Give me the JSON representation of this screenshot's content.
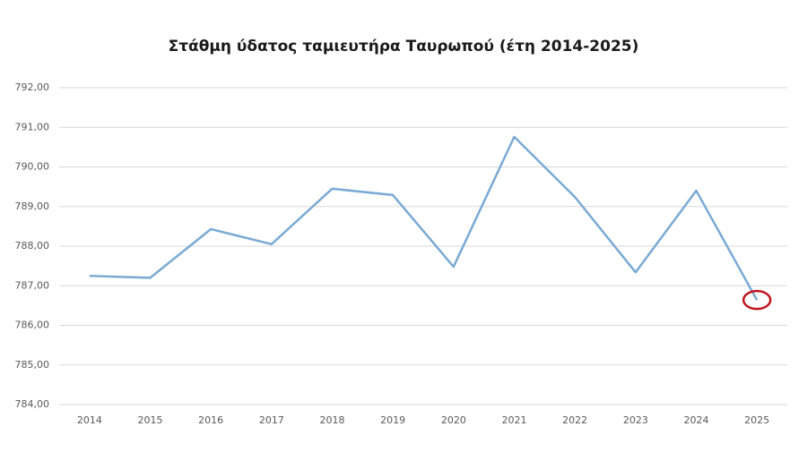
{
  "chart_data": {
    "type": "line",
    "title": "Στάθμη ύδατος ταμιευτήρα Ταυρωπού (έτη 2014-2025)",
    "categories": [
      "2014",
      "2015",
      "2016",
      "2017",
      "2018",
      "2019",
      "2020",
      "2021",
      "2022",
      "2023",
      "2024",
      "2025"
    ],
    "series": [
      {
        "color": "#7aaad4",
        "values": [
          787.25,
          787.2,
          788.43,
          788.05,
          789.45,
          789.29,
          787.48,
          790.76,
          789.24,
          787.34,
          789.4,
          786.64
        ]
      }
    ],
    "ylim": [
      784,
      792
    ],
    "yticks": [
      {
        "value": 784,
        "label": "784,00"
      },
      {
        "value": 785,
        "label": "785,00"
      },
      {
        "value": 786,
        "label": "786,00"
      },
      {
        "value": 787,
        "label": "787,00"
      },
      {
        "value": 788,
        "label": "788,00"
      },
      {
        "value": 789,
        "label": "789,00"
      },
      {
        "value": 790,
        "label": "790,00"
      },
      {
        "value": 791,
        "label": "791,00"
      },
      {
        "value": 792,
        "label": "792,00"
      }
    ],
    "grid": true,
    "highlight_color": "#c0141c"
  }
}
